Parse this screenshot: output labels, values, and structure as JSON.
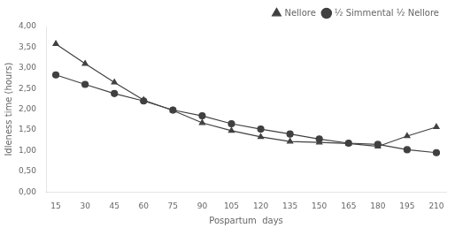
{
  "chart_data": {
    "type": "line",
    "xlabel": "Pospartum  days",
    "ylabel": "Idleness time (hours)",
    "x": [
      15,
      30,
      45,
      60,
      75,
      90,
      105,
      120,
      135,
      150,
      165,
      180,
      195,
      210
    ],
    "series": [
      {
        "name": "Nellore",
        "color": "#404040",
        "marker": "triangle",
        "values": [
          3.58,
          3.1,
          2.65,
          2.22,
          1.97,
          1.67,
          1.48,
          1.33,
          1.22,
          1.2,
          1.17,
          1.1,
          1.35,
          1.57
        ]
      },
      {
        "name": "½ Simmental ½ Nellore",
        "color": "#404040",
        "marker": "circle",
        "values": [
          2.83,
          2.6,
          2.38,
          2.2,
          1.98,
          1.84,
          1.65,
          1.52,
          1.4,
          1.28,
          1.18,
          1.15,
          1.02,
          0.95
        ]
      }
    ],
    "xlim": [
      10,
      215
    ],
    "xticks": [
      15,
      30,
      45,
      60,
      75,
      90,
      105,
      120,
      135,
      150,
      165,
      180,
      195,
      210
    ],
    "ylim": [
      0.0,
      4.0
    ],
    "yticks": [
      {
        "value": 0.0,
        "label": "0,00"
      },
      {
        "value": 0.5,
        "label": "0,50"
      },
      {
        "value": 1.0,
        "label": "1,00"
      },
      {
        "value": 1.5,
        "label": "1,50"
      },
      {
        "value": 2.0,
        "label": "2,00"
      },
      {
        "value": 2.5,
        "label": "2,50"
      },
      {
        "value": 3.0,
        "label": "3,00"
      },
      {
        "value": 3.5,
        "label": "3,50"
      },
      {
        "value": 4.0,
        "label": "4,00"
      }
    ],
    "grid": false,
    "legend": "upper right"
  }
}
